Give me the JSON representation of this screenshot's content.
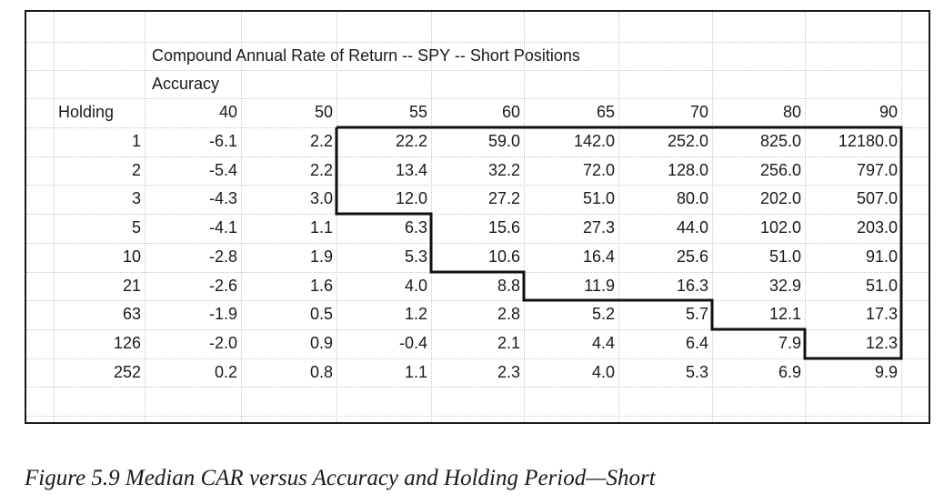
{
  "table": {
    "title": "Compound Annual Rate of Return -- SPY -- Short Positions",
    "accuracy_label": "Accuracy",
    "holding_label": "Holding",
    "accuracy_values": [
      "40",
      "50",
      "55",
      "60",
      "65",
      "70",
      "80",
      "90"
    ],
    "rows": [
      {
        "holding": "1",
        "values": [
          "-6.1",
          "2.2",
          "22.2",
          "59.0",
          "142.0",
          "252.0",
          "825.0",
          "12180.0"
        ]
      },
      {
        "holding": "2",
        "values": [
          "-5.4",
          "2.2",
          "13.4",
          "32.2",
          "72.0",
          "128.0",
          "256.0",
          "797.0"
        ]
      },
      {
        "holding": "3",
        "values": [
          "-4.3",
          "3.0",
          "12.0",
          "27.2",
          "51.0",
          "80.0",
          "202.0",
          "507.0"
        ]
      },
      {
        "holding": "5",
        "values": [
          "-4.1",
          "1.1",
          "6.3",
          "15.6",
          "27.3",
          "44.0",
          "102.0",
          "203.0"
        ]
      },
      {
        "holding": "10",
        "values": [
          "-2.8",
          "1.9",
          "5.3",
          "10.6",
          "16.4",
          "25.6",
          "51.0",
          "91.0"
        ]
      },
      {
        "holding": "21",
        "values": [
          "-2.6",
          "1.6",
          "4.0",
          "8.8",
          "11.9",
          "16.3",
          "32.9",
          "51.0"
        ]
      },
      {
        "holding": "63",
        "values": [
          "-1.9",
          "0.5",
          "1.2",
          "2.8",
          "5.2",
          "5.7",
          "12.1",
          "17.3"
        ]
      },
      {
        "holding": "126",
        "values": [
          "-2.0",
          "0.9",
          "-0.4",
          "2.1",
          "4.4",
          "6.4",
          "7.9",
          "12.3"
        ]
      },
      {
        "holding": "252",
        "values": [
          "0.2",
          "0.8",
          "1.1",
          "2.3",
          "4.0",
          "5.3",
          "6.9",
          "9.9"
        ]
      }
    ]
  },
  "caption": "Figure 5.9  Median CAR versus Accuracy and Holding Period—Short"
}
